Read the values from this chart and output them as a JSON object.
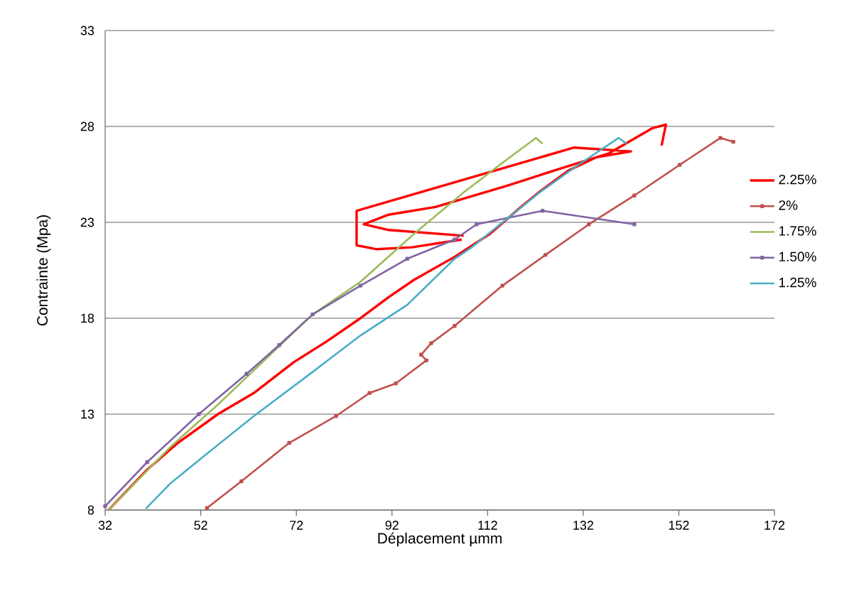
{
  "chart_data": {
    "type": "line",
    "xlabel": "Déplacement µmm",
    "ylabel": "Contrainte (Mpa)",
    "xlim": [
      32,
      172
    ],
    "ylim": [
      8,
      33
    ],
    "xticks": [
      32,
      52,
      72,
      92,
      112,
      132,
      152,
      172
    ],
    "yticks": [
      8,
      13,
      18,
      23,
      28,
      33
    ],
    "grid": "y",
    "legend": "right",
    "line_style": "solid",
    "series": [
      {
        "name": "2.25%",
        "color": "#ff0000",
        "marker": "none",
        "x": [
          32.7,
          40.8,
          47.2,
          55.6,
          63.1,
          71.4,
          78.4,
          85.4,
          91.3,
          96.6,
          105.1,
          112.5,
          118.5,
          122.9,
          128.9,
          134.8,
          142.0,
          130.1,
          84.6,
          84.6,
          88.8,
          96.2,
          106.6,
          null,
          107.0,
          91.3,
          86.1,
          91.3,
          101.1,
          116.0,
          125.9,
          137.4,
          146.4,
          149.3,
          148.4
        ],
        "values": [
          8.0,
          10.1,
          11.5,
          13.0,
          14.1,
          15.7,
          16.8,
          18.0,
          19.1,
          20.0,
          21.2,
          22.4,
          23.7,
          24.6,
          25.7,
          26.4,
          26.7,
          26.9,
          23.6,
          21.8,
          21.6,
          21.7,
          22.1,
          null,
          22.3,
          22.6,
          22.9,
          23.4,
          23.8,
          24.9,
          25.7,
          26.6,
          27.9,
          28.1,
          27.0
        ]
      },
      {
        "name": "2%",
        "color": "#c0504d",
        "marker": "square",
        "x": [
          53.3,
          60.5,
          70.5,
          80.3,
          87.3,
          92.8,
          99.2,
          98.1,
          100.2,
          105.1,
          115.1,
          124.1,
          133.2,
          142.7,
          152.2,
          160.7,
          163.4
        ],
        "values": [
          8.1,
          9.5,
          11.5,
          12.9,
          14.1,
          14.6,
          15.8,
          16.1,
          16.7,
          17.6,
          19.7,
          21.3,
          22.9,
          24.4,
          26.0,
          27.4,
          27.2
        ]
      },
      {
        "name": "1.75%",
        "color": "#9bbb59",
        "marker": "none",
        "x": [
          32.7,
          45.7,
          55.6,
          75.4,
          85.4,
          96.6,
          107.2,
          115.1,
          122.1,
          123.5
        ],
        "values": [
          8.0,
          11.3,
          13.5,
          18.2,
          19.9,
          22.4,
          24.6,
          26.1,
          27.4,
          27.1
        ]
      },
      {
        "name": "1.50%",
        "color": "#8064a2",
        "marker": "square",
        "x": [
          32.0,
          40.8,
          51.6,
          61.6,
          68.4,
          75.4,
          85.4,
          95.2,
          105.1,
          109.7,
          123.5,
          142.7
        ],
        "values": [
          8.2,
          10.5,
          13.0,
          15.1,
          16.6,
          18.2,
          19.7,
          21.1,
          22.1,
          22.9,
          23.6,
          22.9
        ]
      },
      {
        "name": "1.25%",
        "color": "#4bacc6",
        "marker": "none",
        "x": [
          40.5,
          45.7,
          53.1,
          63.1,
          75.4,
          85.4,
          95.2,
          105.1,
          108.7,
          123.1,
          131.0,
          139.4,
          141.1
        ],
        "values": [
          8.07,
          9.4,
          10.9,
          12.9,
          15.2,
          17.1,
          18.7,
          21.1,
          21.7,
          24.6,
          26.0,
          27.4,
          27.1
        ]
      }
    ]
  }
}
